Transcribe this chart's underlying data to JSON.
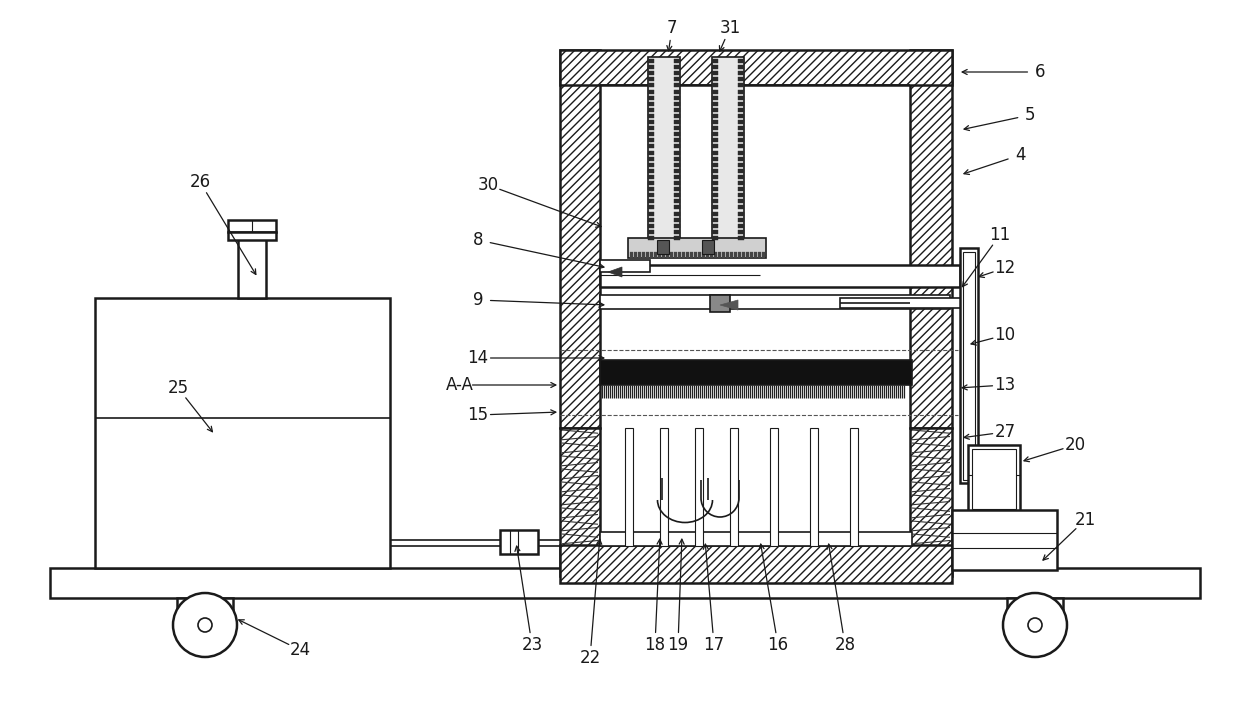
{
  "bg": "#ffffff",
  "lc": "#1a1a1a",
  "figsize": [
    12.4,
    7.01
  ],
  "dpi": 100,
  "annotations": [
    [
      "4",
      1020,
      155,
      960,
      175
    ],
    [
      "5",
      1030,
      115,
      960,
      130
    ],
    [
      "6",
      1040,
      72,
      958,
      72
    ],
    [
      "7",
      672,
      28,
      668,
      55
    ],
    [
      "31",
      730,
      28,
      718,
      55
    ],
    [
      "30",
      488,
      185,
      605,
      228
    ],
    [
      "8",
      478,
      240,
      608,
      268
    ],
    [
      "9",
      478,
      300,
      608,
      305
    ],
    [
      "11",
      1000,
      235,
      960,
      290
    ],
    [
      "12",
      1005,
      268,
      975,
      278
    ],
    [
      "10",
      1005,
      335,
      967,
      345
    ],
    [
      "13",
      1005,
      385,
      958,
      388
    ],
    [
      "14",
      478,
      358,
      608,
      358
    ],
    [
      "A-A",
      460,
      385,
      560,
      385
    ],
    [
      "15",
      478,
      415,
      560,
      412
    ],
    [
      "27",
      1005,
      432,
      960,
      438
    ],
    [
      "20",
      1075,
      445,
      1020,
      462
    ],
    [
      "21",
      1085,
      520,
      1040,
      563
    ],
    [
      "16",
      778,
      645,
      760,
      540
    ],
    [
      "17",
      714,
      645,
      705,
      540
    ],
    [
      "18",
      655,
      645,
      660,
      535
    ],
    [
      "19",
      678,
      645,
      682,
      535
    ],
    [
      "22",
      590,
      658,
      600,
      535
    ],
    [
      "23",
      532,
      645,
      516,
      542
    ],
    [
      "24",
      300,
      650,
      235,
      618
    ],
    [
      "25",
      178,
      388,
      215,
      435
    ],
    [
      "26",
      200,
      182,
      258,
      278
    ],
    [
      "28",
      845,
      645,
      828,
      540
    ]
  ]
}
